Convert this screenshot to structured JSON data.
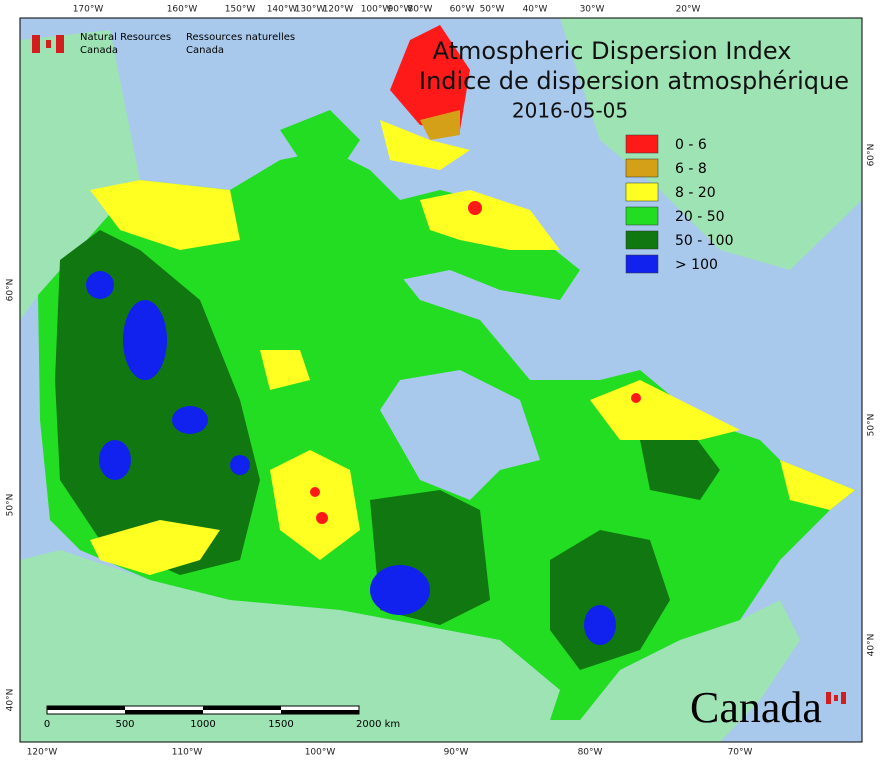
{
  "header": {
    "agency_en": [
      "Natural Resources",
      "Canada"
    ],
    "agency_fr": [
      "Ressources naturelles",
      "Canada"
    ]
  },
  "title": {
    "line1": "Atmospheric Dispersion Index",
    "line2": "Indice de dispersion atmosphérique",
    "date": "2016-05-05"
  },
  "legend": [
    {
      "label": "0 - 6",
      "color": "#ff1a1a"
    },
    {
      "label": "6 - 8",
      "color": "#d4a017"
    },
    {
      "label": "8 - 20",
      "color": "#ffff22"
    },
    {
      "label": "20 - 50",
      "color": "#22dd22"
    },
    {
      "label": "50 - 100",
      "color": "#117711"
    },
    {
      "label": "> 100",
      "color": "#1122ee"
    }
  ],
  "graticule": {
    "top": [
      "170°W",
      "160°W",
      "150°W",
      "140°W",
      "130°W",
      "120°W",
      "100°W",
      "90°W",
      "80°W",
      "60°W",
      "50°W",
      "40°W",
      "30°W",
      "20°W"
    ],
    "bottom": [
      "120°W",
      "110°W",
      "100°W",
      "90°W",
      "80°W",
      "70°W"
    ],
    "left": [
      "60°N",
      "50°N",
      "40°N"
    ],
    "right": [
      "60°N",
      "50°N",
      "40°N"
    ]
  },
  "scale_bar": {
    "labels": [
      "0",
      "500",
      "1000",
      "1500",
      "2000 km"
    ]
  },
  "wordmark": "Canada"
}
